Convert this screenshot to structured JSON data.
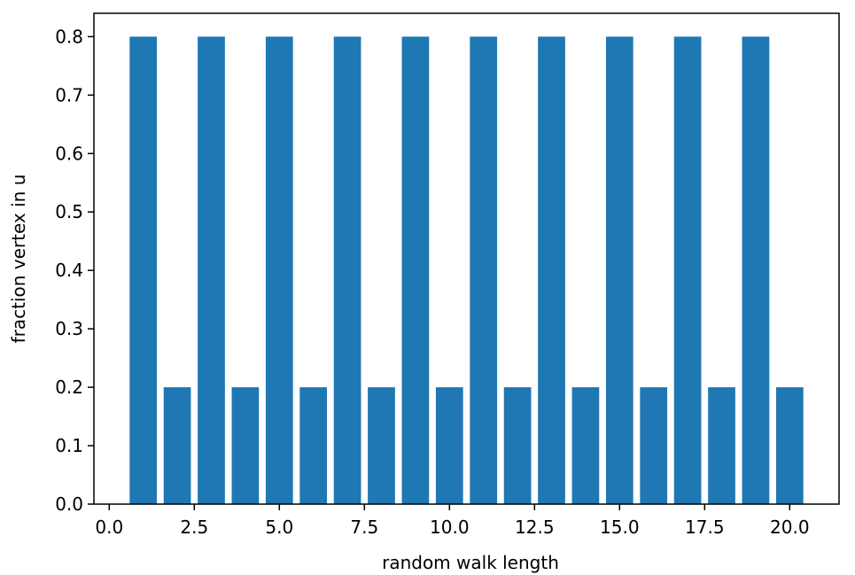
{
  "chart_data": {
    "type": "bar",
    "title": "",
    "xlabel": "random walk length",
    "ylabel": "fraction vertex in u",
    "x": [
      1,
      2,
      3,
      4,
      5,
      6,
      7,
      8,
      9,
      10,
      11,
      12,
      13,
      14,
      15,
      16,
      17,
      18,
      19,
      20
    ],
    "values": [
      0.8,
      0.2,
      0.8,
      0.2,
      0.8,
      0.2,
      0.8,
      0.2,
      0.8,
      0.2,
      0.8,
      0.2,
      0.8,
      0.2,
      0.8,
      0.2,
      0.8,
      0.2,
      0.8,
      0.2
    ],
    "bar_width": 0.8,
    "xlim": [
      -0.45,
      21.45
    ],
    "ylim": [
      0,
      0.84
    ],
    "xticks": [
      0.0,
      2.5,
      5.0,
      7.5,
      10.0,
      12.5,
      15.0,
      17.5,
      20.0
    ],
    "xtick_labels": [
      "0.0",
      "2.5",
      "5.0",
      "7.5",
      "10.0",
      "12.5",
      "15.0",
      "17.5",
      "20.0"
    ],
    "yticks": [
      0.0,
      0.1,
      0.2,
      0.3,
      0.4,
      0.5,
      0.6,
      0.7,
      0.8
    ],
    "ytick_labels": [
      "0.0",
      "0.1",
      "0.2",
      "0.3",
      "0.4",
      "0.5",
      "0.6",
      "0.7",
      "0.8"
    ],
    "grid": false,
    "colors": {
      "bar": "#1f77b4",
      "axes": "#000000"
    }
  }
}
